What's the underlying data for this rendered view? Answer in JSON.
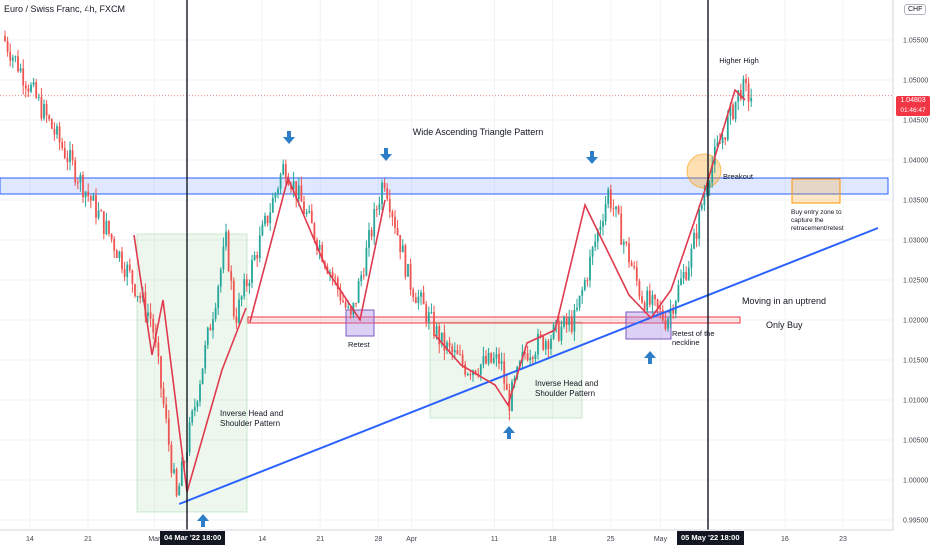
{
  "header": {
    "title": "Euro / Swiss Franc, 4h, FXCM"
  },
  "currency_badge": "CHF",
  "price_label": {
    "value": "1.04803",
    "countdown": "01:46:47"
  },
  "date_markers": [
    "04 Mar '22  18:00",
    "05 May '22  18:00"
  ],
  "annotations": {
    "triangle": "Wide Ascending Triangle Pattern",
    "higher_high": "Higher High",
    "breakout": "Breakout",
    "buy_zone": [
      "Buy entry zone to",
      "capture the",
      "retracement/retest"
    ],
    "uptrend": "Moving in an uptrend",
    "only_buy": "Only Buy",
    "retest": "Retest",
    "neckline": [
      "Retest of the",
      "neckline"
    ],
    "ihs1": [
      "Inverse Head and",
      "Shoulder Pattern"
    ],
    "ihs2": [
      "Inverse Head and",
      "Shoulder Pattern"
    ]
  },
  "chart_data": {
    "type": "candlestick",
    "symbol": "EURCHF",
    "timeframe": "4h",
    "y_ticks": [
      0.995,
      1.0,
      1.005,
      1.01,
      1.015,
      1.02,
      1.025,
      1.03,
      1.035,
      1.04,
      1.045,
      1.05,
      1.055
    ],
    "y_tick_labels": [
      "0.99500",
      "1.00000",
      "1.00500",
      "1.01000",
      "1.01500",
      "1.02000",
      "1.02500",
      "1.03000",
      "1.03500",
      "1.04000",
      "1.04500",
      "1.05000",
      "1.05500"
    ],
    "x_tick_labels": [
      "14",
      "21",
      "Mar",
      "14",
      "21",
      "28",
      "Apr",
      "11",
      "18",
      "25",
      "May",
      "16",
      "23"
    ],
    "ylim": [
      0.994,
      1.059
    ],
    "key_points": [
      {
        "date": "2022-02-11",
        "price": 1.0555
      },
      {
        "date": "2022-02-24",
        "price": 1.0305
      },
      {
        "date": "2022-03-01",
        "price": 1.02
      },
      {
        "date": "2022-03-04",
        "price": 0.9975
      },
      {
        "date": "2022-03-10",
        "price": 1.03
      },
      {
        "date": "2022-03-11",
        "price": 1.02
      },
      {
        "date": "2022-03-17",
        "price": 1.0395
      },
      {
        "date": "2022-03-23",
        "price": 1.025
      },
      {
        "date": "2022-03-25",
        "price": 1.02
      },
      {
        "date": "2022-03-29",
        "price": 1.038
      },
      {
        "date": "2022-04-01",
        "price": 1.025
      },
      {
        "date": "2022-04-05",
        "price": 1.017
      },
      {
        "date": "2022-04-08",
        "price": 1.014
      },
      {
        "date": "2022-04-12",
        "price": 1.015
      },
      {
        "date": "2022-04-13",
        "price": 1.0095
      },
      {
        "date": "2022-04-15",
        "price": 1.016
      },
      {
        "date": "2022-04-21",
        "price": 1.02
      },
      {
        "date": "2022-04-25",
        "price": 1.036
      },
      {
        "date": "2022-04-29",
        "price": 1.023
      },
      {
        "date": "2022-05-02",
        "price": 1.02
      },
      {
        "date": "2022-05-05",
        "price": 1.028
      },
      {
        "date": "2022-05-07",
        "price": 1.038
      },
      {
        "date": "2022-05-11",
        "price": 1.049
      },
      {
        "date": "2022-05-12",
        "price": 1.048
      }
    ],
    "resistance_zone": [
      1.036,
      1.0375
    ],
    "neckline_level": 1.02,
    "uptrend_line": [
      {
        "date": "2022-03-04",
        "price": 0.997
      },
      {
        "date": "2022-05-23",
        "price": 1.0315
      }
    ],
    "last_price": 1.04803
  },
  "colors": {
    "up": "#26a69a",
    "down": "#ef5350",
    "trend": "#2962ff",
    "zone_blue": "#2962ff",
    "neck_red": "#f23645",
    "retest_purple": "#9c7be0",
    "buy_orange": "#ff9800",
    "arrow": "#2e7ec7",
    "pattern_line": "#e03a4e"
  }
}
